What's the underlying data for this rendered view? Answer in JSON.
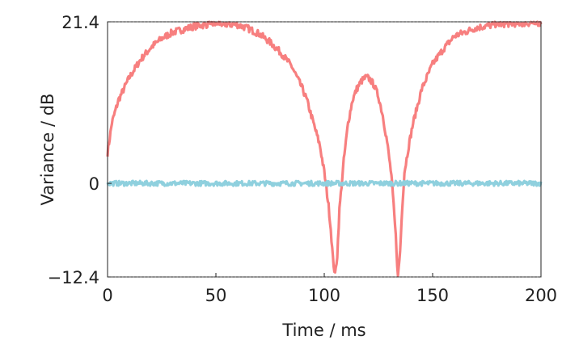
{
  "chart_data": {
    "type": "line",
    "title": "",
    "xlabel": "Time / ms",
    "ylabel": "Variance / dB",
    "xlim": [
      0,
      200
    ],
    "ylim": [
      -12.4,
      21.4
    ],
    "x_ticks": [
      0,
      50,
      100,
      150,
      200
    ],
    "x_tick_labels": [
      "0",
      "50",
      "100",
      "150",
      "200"
    ],
    "y_ticks": [
      -12.4,
      0,
      21.4
    ],
    "y_tick_labels": [
      "−12.4",
      "0",
      "21.4"
    ],
    "reference_lines": [
      21.4,
      -12.4
    ],
    "grid": false,
    "legend": "none",
    "series": [
      {
        "color": "#f77f7f",
        "x": [
          0,
          2,
          5,
          10,
          15,
          20,
          25,
          30,
          40,
          50,
          60,
          65,
          70,
          75,
          80,
          85,
          90,
          92,
          95,
          98,
          100,
          102,
          103,
          104,
          105,
          106,
          107,
          109,
          111,
          113,
          115,
          117,
          119,
          120,
          121,
          123,
          125,
          127,
          129,
          131,
          132,
          133,
          134,
          135,
          136,
          137,
          139,
          141,
          145,
          150,
          155,
          160,
          170,
          180,
          190,
          200
        ],
        "y": [
          4.0,
          8.0,
          11.0,
          14.0,
          16.3,
          18.0,
          19.2,
          20.0,
          20.8,
          21.2,
          21.0,
          20.5,
          19.8,
          18.7,
          17.3,
          15.5,
          12.5,
          11.0,
          8.0,
          5.0,
          1.5,
          -3.0,
          -6.0,
          -10.0,
          -12.2,
          -9.5,
          -3.5,
          3.0,
          8.0,
          11.0,
          12.5,
          13.5,
          14.0,
          14.0,
          13.8,
          13.0,
          11.5,
          9.0,
          5.5,
          1.0,
          -3.0,
          -7.0,
          -12.4,
          -9.0,
          -3.0,
          1.5,
          5.0,
          8.0,
          12.5,
          15.8,
          17.8,
          19.5,
          20.6,
          21.1,
          21.2,
          21.3
        ]
      },
      {
        "color": "#8fd0de",
        "x": [
          0,
          200
        ],
        "y": [
          0,
          0
        ]
      }
    ]
  }
}
